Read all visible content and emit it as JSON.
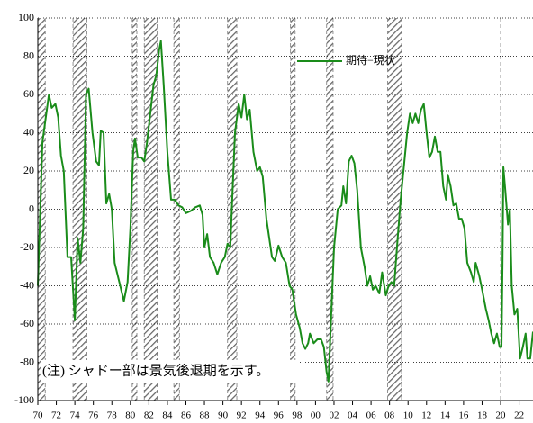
{
  "chart_data": {
    "type": "line",
    "annotation": "(注) シャドー部は景気後退期を示す。",
    "xlim": [
      1970,
      2023.5
    ],
    "ylim": [
      -100,
      100
    ],
    "yticks": [
      -100,
      -80,
      -60,
      -40,
      -20,
      0,
      20,
      40,
      60,
      80,
      100
    ],
    "xticks": [
      {
        "value": 1970,
        "label": "70"
      },
      {
        "value": 1972,
        "label": "72"
      },
      {
        "value": 1974,
        "label": "74"
      },
      {
        "value": 1976,
        "label": "76"
      },
      {
        "value": 1978,
        "label": "78"
      },
      {
        "value": 1980,
        "label": "80"
      },
      {
        "value": 1982,
        "label": "82"
      },
      {
        "value": 1984,
        "label": "84"
      },
      {
        "value": 1986,
        "label": "86"
      },
      {
        "value": 1988,
        "label": "88"
      },
      {
        "value": 1990,
        "label": "90"
      },
      {
        "value": 1992,
        "label": "92"
      },
      {
        "value": 1994,
        "label": "94"
      },
      {
        "value": 1996,
        "label": "96"
      },
      {
        "value": 1998,
        "label": "98"
      },
      {
        "value": 2000,
        "label": "00"
      },
      {
        "value": 2002,
        "label": "02"
      },
      {
        "value": 2004,
        "label": "04"
      },
      {
        "value": 2006,
        "label": "06"
      },
      {
        "value": 2008,
        "label": "08"
      },
      {
        "value": 2010,
        "label": "10"
      },
      {
        "value": 2012,
        "label": "12"
      },
      {
        "value": 2014,
        "label": "14"
      },
      {
        "value": 2016,
        "label": "16"
      },
      {
        "value": 2018,
        "label": "18"
      },
      {
        "value": 2020,
        "label": "20"
      },
      {
        "value": 2022,
        "label": "22"
      }
    ],
    "grid": true,
    "recessions": [
      [
        1970.0,
        1970.8
      ],
      [
        1973.8,
        1975.3
      ],
      [
        1980.2,
        1980.7
      ],
      [
        1981.5,
        1982.9
      ],
      [
        1984.7,
        1985.3
      ],
      [
        1990.5,
        1991.5
      ],
      [
        1997.3,
        1997.8
      ],
      [
        2001.2,
        2001.9
      ],
      [
        2007.8,
        2009.3
      ],
      [
        2020.0,
        2020.05
      ]
    ],
    "series": [
      {
        "name": "期待−現状",
        "color": "#1a8c1a",
        "x": [
          1970.0,
          1970.5,
          1971.2,
          1971.5,
          1971.9,
          1972.2,
          1972.5,
          1972.8,
          1973.2,
          1973.6,
          1974.0,
          1974.3,
          1974.6,
          1974.9,
          1975.2,
          1975.5,
          1975.9,
          1976.3,
          1976.6,
          1976.8,
          1977.1,
          1977.4,
          1977.7,
          1978.0,
          1978.3,
          1978.8,
          1979.3,
          1979.7,
          1980.0,
          1980.3,
          1980.5,
          1980.8,
          1981.2,
          1981.5,
          1981.8,
          1982.2,
          1982.5,
          1982.8,
          1983.1,
          1983.3,
          1983.6,
          1984.0,
          1984.4,
          1984.8,
          1985.2,
          1985.6,
          1986.0,
          1986.5,
          1987.0,
          1987.5,
          1987.8,
          1988.0,
          1988.3,
          1988.6,
          1989.0,
          1989.4,
          1989.8,
          1990.2,
          1990.5,
          1990.8,
          1991.0,
          1991.3,
          1991.7,
          1992.0,
          1992.3,
          1992.6,
          1992.9,
          1993.3,
          1993.7,
          1994.0,
          1994.3,
          1994.7,
          1995.0,
          1995.3,
          1995.6,
          1996.0,
          1996.4,
          1996.8,
          1997.2,
          1997.5,
          1997.9,
          1998.3,
          1998.6,
          1998.9,
          1999.2,
          1999.4,
          1999.8,
          2000.2,
          2000.6,
          2000.9,
          2001.2,
          2001.4,
          2001.7,
          2002.0,
          2002.4,
          2002.8,
          2003.0,
          2003.3,
          2003.6,
          2003.9,
          2004.2,
          2004.5,
          2004.9,
          2005.3,
          2005.6,
          2005.9,
          2006.2,
          2006.5,
          2006.9,
          2007.2,
          2007.6,
          2007.9,
          2008.2,
          2008.5,
          2008.8,
          2009.2,
          2009.5,
          2009.9,
          2010.2,
          2010.5,
          2010.8,
          2011.1,
          2011.4,
          2011.7,
          2012.0,
          2012.3,
          2012.6,
          2012.9,
          2013.2,
          2013.5,
          2013.8,
          2014.1,
          2014.3,
          2014.6,
          2014.9,
          2015.2,
          2015.5,
          2015.8,
          2016.1,
          2016.4,
          2016.8,
          2017.1,
          2017.3,
          2017.7,
          2018.0,
          2018.4,
          2018.7,
          2019.0,
          2019.3,
          2019.6,
          2019.9,
          2020.1,
          2020.2,
          2020.3,
          2020.5,
          2020.8,
          2021.0,
          2021.2,
          2021.5,
          2021.8,
          2022.1,
          2022.4,
          2022.7,
          2022.9,
          2023.2,
          2023.5
        ],
        "values": [
          -40,
          35,
          60,
          53,
          55,
          48,
          28,
          20,
          -25,
          -25,
          -58,
          -15,
          -28,
          -10,
          60,
          63,
          40,
          25,
          23,
          41,
          40,
          3,
          8,
          0,
          -28,
          -38,
          -48,
          -38,
          -10,
          30,
          37,
          27,
          27,
          25,
          35,
          52,
          65,
          70,
          83,
          88,
          65,
          30,
          5,
          5,
          2,
          1,
          -2,
          -1,
          1,
          2,
          -3,
          -20,
          -13,
          -25,
          -28,
          -34,
          -28,
          -25,
          -18,
          -20,
          5,
          40,
          55,
          48,
          60,
          47,
          52,
          30,
          20,
          22,
          17,
          -5,
          -15,
          -25,
          -27,
          -19,
          -25,
          -28,
          -40,
          -42,
          -55,
          -62,
          -70,
          -73,
          -70,
          -65,
          -70,
          -68,
          -68,
          -72,
          -85,
          -90,
          -55,
          -20,
          0,
          2,
          12,
          3,
          25,
          28,
          24,
          10,
          -20,
          -30,
          -40,
          -35,
          -42,
          -40,
          -44,
          -33,
          -45,
          -40,
          -38,
          -40,
          -20,
          5,
          20,
          40,
          50,
          45,
          50,
          45,
          52,
          55,
          40,
          27,
          30,
          38,
          30,
          30,
          12,
          5,
          18,
          12,
          2,
          3,
          -5,
          -5,
          -10,
          -28,
          -33,
          -38,
          -28,
          -35,
          -42,
          -52,
          -58,
          -65,
          -70,
          -65,
          -72,
          -72,
          -30,
          22,
          10,
          -8,
          0,
          -40,
          -55,
          -52,
          -78,
          -72,
          -65,
          -78,
          -78,
          -64
        ]
      }
    ]
  }
}
